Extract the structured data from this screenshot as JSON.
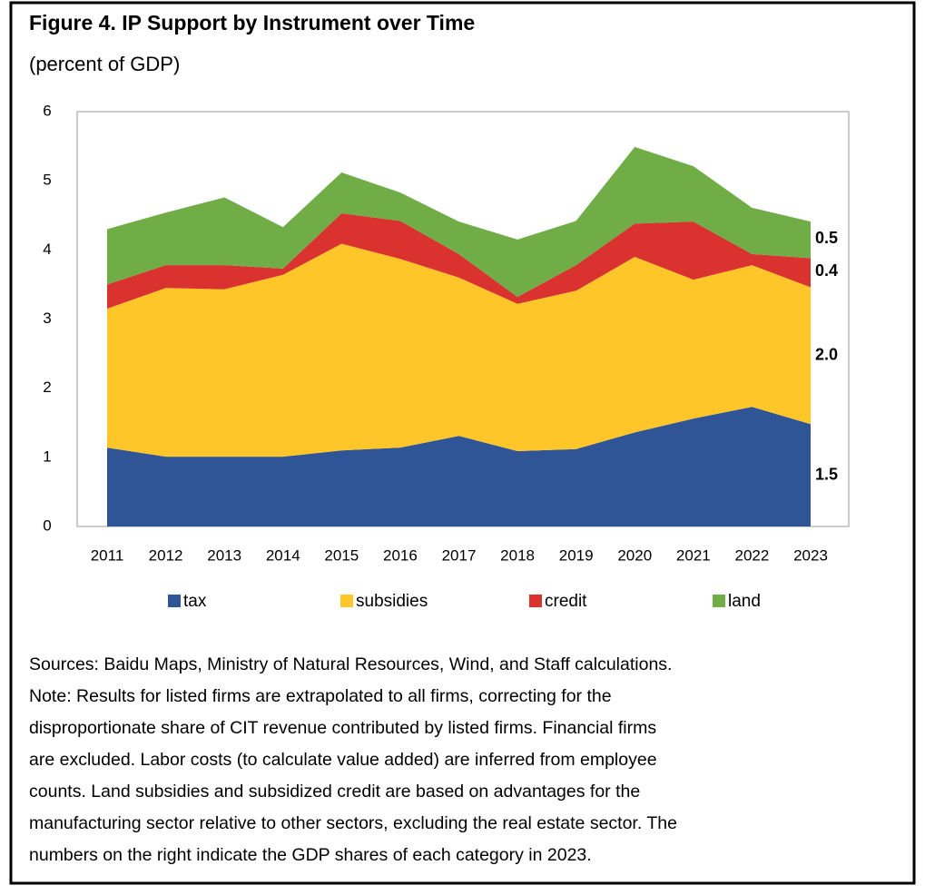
{
  "chart_data": {
    "type": "stacked_area",
    "title": "Figure 4. IP Support by Instrument over Time",
    "subtitle": "(percent of GDP)",
    "categories": [
      "2011",
      "2012",
      "2013",
      "2014",
      "2015",
      "2016",
      "2017",
      "2018",
      "2019",
      "2020",
      "2021",
      "2022",
      "2023"
    ],
    "ylim": [
      0,
      6
    ],
    "yticks": [
      0,
      1,
      2,
      3,
      4,
      5,
      6
    ],
    "series": [
      {
        "name": "tax",
        "color": "#2f5597",
        "values": [
          1.14,
          1.01,
          1.01,
          1.01,
          1.1,
          1.14,
          1.31,
          1.09,
          1.12,
          1.36,
          1.56,
          1.73,
          1.48
        ],
        "end_label": "1.5"
      },
      {
        "name": "subsidies",
        "color": "#ffc62a",
        "values": [
          2.01,
          2.44,
          2.42,
          2.63,
          2.99,
          2.73,
          2.29,
          2.13,
          2.29,
          2.54,
          2.01,
          2.05,
          1.98
        ],
        "end_label": "2.0"
      },
      {
        "name": "credit",
        "color": "#d9322f",
        "values": [
          0.35,
          0.33,
          0.35,
          0.09,
          0.44,
          0.55,
          0.34,
          0.1,
          0.37,
          0.48,
          0.84,
          0.16,
          0.42
        ],
        "end_label": "0.4"
      },
      {
        "name": "land",
        "color": "#70ad47",
        "values": [
          0.8,
          0.76,
          0.98,
          0.6,
          0.59,
          0.41,
          0.47,
          0.83,
          0.64,
          1.11,
          0.8,
          0.67,
          0.53
        ],
        "end_label": "0.5"
      }
    ],
    "notes": [
      "Sources: Baidu Maps, Ministry of Natural Resources, Wind, and Staff calculations.",
      "Note: Results for listed firms are extrapolated to all firms, correcting for the",
      "disproportionate share of CIT revenue contributed by listed firms. Financial firms",
      "are excluded. Labor costs (to calculate value added) are inferred from employee",
      "counts. Land subsidies and subsidized credit are based on advantages for the",
      "manufacturing sector relative to other sectors, excluding the real estate sector. The",
      "numbers on the right indicate the GDP shares of each category in 2023."
    ]
  }
}
